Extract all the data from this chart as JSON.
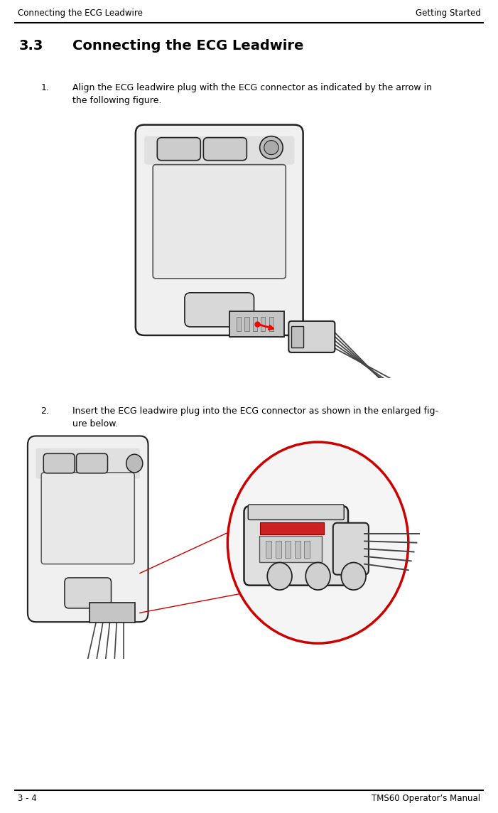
{
  "header_left": "Connecting the ECG Leadwire",
  "header_right": "Getting Started",
  "footer_left": "3 - 4",
  "footer_right": "TMS60 Operator’s Manual",
  "section_number": "3.3",
  "section_title": "Connecting the ECG Leadwire",
  "item1_number": "1.",
  "item1_text": "Align the ECG leadwire plug with the ECG connector as indicated by the arrow in\nthe following figure.",
  "item2_number": "2.",
  "item2_text": "Insert the ECG leadwire plug into the ECG connector as shown in the enlarged fig-\nure below.",
  "bg_color": "#ffffff",
  "text_color": "#000000",
  "line_color": "#000000",
  "header_fontsize": 8.5,
  "footer_fontsize": 8.5,
  "section_title_fontsize": 14,
  "body_fontsize": 9
}
